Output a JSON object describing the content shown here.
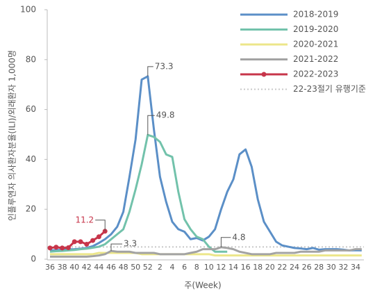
{
  "chart_data": {
    "type": "line",
    "y_label": "인플루엔자 의사환자분율(ILI)/외래환자 1,000명",
    "x_label": "주(Week)",
    "categories": [
      "36",
      null,
      "38",
      null,
      "40",
      null,
      "42",
      null,
      "44",
      null,
      "46",
      null,
      "48",
      null,
      "50",
      null,
      "52",
      null,
      "2",
      null,
      "4",
      null,
      "6",
      null,
      "8",
      null,
      "10",
      null,
      "12",
      null,
      "14",
      null,
      "16",
      null,
      "18",
      null,
      "20",
      null,
      "22",
      null,
      "24",
      null,
      "26",
      null,
      "28",
      null,
      "30",
      null,
      "32",
      null,
      "34",
      null
    ],
    "ylim": [
      0,
      100
    ],
    "yticks": [
      0,
      20,
      40,
      60,
      80,
      100
    ],
    "series": [
      {
        "name": "2018-2019",
        "color": "#5b8fc7",
        "values": [
          3.5,
          3.6,
          3.8,
          3.9,
          4,
          4.2,
          4.5,
          5.2,
          6.5,
          8,
          10,
          13,
          19,
          33,
          48,
          72,
          73.3,
          52,
          33,
          23,
          15,
          12,
          11,
          8,
          8.5,
          7.5,
          9,
          12,
          20,
          27,
          32,
          42,
          44,
          37,
          24,
          15,
          11,
          7,
          5.5,
          5,
          4.5,
          4.3,
          4,
          4.5,
          3.8,
          4,
          4,
          4,
          3.8,
          3.5,
          3.6,
          3.5
        ]
      },
      {
        "name": "2019-2020",
        "color": "#72c2ab",
        "values": [
          3,
          3.2,
          3.3,
          3.5,
          3.7,
          4,
          4.2,
          4.6,
          5,
          6,
          8,
          10,
          12,
          19,
          28,
          38,
          49.8,
          49,
          47,
          42,
          41,
          27,
          16,
          12,
          9,
          8,
          5,
          3,
          3,
          3,
          null,
          null,
          null,
          null,
          null,
          null,
          null,
          null,
          null,
          null,
          null,
          null,
          null,
          null,
          null,
          null,
          null,
          null,
          null,
          null,
          null,
          null
        ]
      },
      {
        "name": "2020-2021",
        "color": "#ece68a",
        "values": [
          2,
          2,
          2,
          2,
          2,
          2,
          2,
          2,
          2.5,
          2.5,
          2.5,
          2.5,
          2.5,
          2.5,
          2.5,
          2,
          2,
          2,
          2,
          2,
          2,
          2,
          2,
          2,
          2,
          2,
          2,
          1.5,
          1.5,
          1.5,
          1.5,
          1.5,
          1.5,
          1.5,
          1.5,
          1.5,
          1.5,
          1.5,
          1.5,
          1.5,
          1.5,
          1.5,
          1.5,
          1.5,
          1.5,
          1.5,
          1.5,
          1.5,
          1.5,
          1.5,
          1.5,
          1.5
        ]
      },
      {
        "name": "2021-2022",
        "color": "#a3a3a3",
        "values": [
          1,
          1,
          1,
          1,
          1,
          1,
          1,
          1.2,
          1.5,
          2,
          3.3,
          3,
          3,
          3,
          2.5,
          2.5,
          2.5,
          2.5,
          2,
          2,
          2,
          2,
          2,
          2.5,
          3,
          4,
          4,
          4,
          4.8,
          4.5,
          4,
          3,
          2.5,
          2,
          2,
          2,
          2,
          2.5,
          2.5,
          2.5,
          2.5,
          3,
          3,
          3,
          3,
          3.5,
          3.5,
          3.5,
          3.5,
          3.5,
          4,
          4
        ]
      },
      {
        "name": "2022-2023",
        "color": "#c7354a",
        "markers": true,
        "values": [
          4.5,
          4.8,
          4.5,
          4.6,
          7,
          7,
          6,
          7.5,
          9,
          11.2,
          null,
          null,
          null,
          null,
          null,
          null,
          null,
          null,
          null,
          null,
          null,
          null,
          null,
          null,
          null,
          null,
          null,
          null,
          null,
          null,
          null,
          null,
          null,
          null,
          null,
          null,
          null,
          null,
          null,
          null,
          null,
          null,
          null,
          null,
          null,
          null,
          null,
          null,
          null,
          null,
          null,
          null
        ]
      }
    ],
    "reference_line": {
      "name": "22-23절기 유행기준",
      "value": 4.9,
      "color": "#c8c8c8"
    }
  }
}
